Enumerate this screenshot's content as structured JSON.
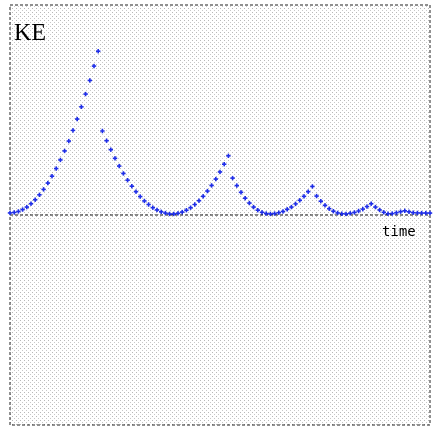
{
  "chart_data": {
    "type": "scatter",
    "y_label": "KE",
    "x_label": "time",
    "xlim": [
      0,
      100
    ],
    "ylim": [
      -100,
      100
    ],
    "color": "#1f2ee8",
    "grid": false,
    "x": [
      0,
      1,
      2,
      3,
      4,
      5,
      6,
      7,
      8,
      9,
      10,
      11,
      12,
      13,
      14,
      15,
      16,
      17,
      18,
      19,
      20,
      21,
      22,
      23,
      24,
      25,
      26,
      27,
      28,
      29,
      30,
      31,
      32,
      33,
      34,
      35,
      36,
      37,
      38,
      39,
      40,
      41,
      42,
      43,
      44,
      45,
      46,
      47,
      48,
      49,
      50,
      51,
      52,
      53,
      54,
      55,
      56,
      57,
      58,
      59,
      60,
      61,
      62,
      63,
      64,
      65,
      66,
      67,
      68,
      69,
      70,
      71,
      72,
      73,
      74,
      75,
      76,
      77,
      78,
      79,
      80,
      81,
      82,
      83,
      84,
      85,
      86,
      87,
      88,
      89,
      90,
      91,
      92,
      93,
      94,
      95,
      96,
      97,
      98,
      99,
      100
    ],
    "values": [
      1,
      1.2,
      1.7,
      2.6,
      3.8,
      5.4,
      7.3,
      9.6,
      12.2,
      15.2,
      18.5,
      22.1,
      26.2,
      30.5,
      35.2,
      40.3,
      45.7,
      51.5,
      57.6,
      64.1,
      70.9,
      78,
      40,
      35.4,
      31.1,
      27,
      23.3,
      19.8,
      16.6,
      13.7,
      11.1,
      8.8,
      6.7,
      5,
      3.5,
      2.4,
      1.5,
      0.9,
      0.5,
      0.5,
      0.8,
      1.4,
      2.3,
      3.5,
      5,
      6.8,
      8.9,
      11.4,
      14.1,
      17.1,
      20.5,
      24.2,
      28.2,
      17.6,
      14,
      10.8,
      8,
      5.7,
      3.8,
      2.3,
      1.3,
      0.7,
      0.5,
      0.7,
      1.1,
      1.7,
      2.7,
      3.8,
      5.3,
      7,
      8.9,
      11.1,
      13.6,
      9,
      6.6,
      4.6,
      3,
      1.8,
      1,
      0.6,
      0.5,
      0.8,
      1.2,
      1.9,
      2.8,
      4,
      5.4,
      3.8,
      2.4,
      1.3,
      0.6,
      0.7,
      1.1,
      1.6,
      2,
      1.5,
      1.1,
      1,
      0.9,
      0.9,
      0.9
    ]
  }
}
